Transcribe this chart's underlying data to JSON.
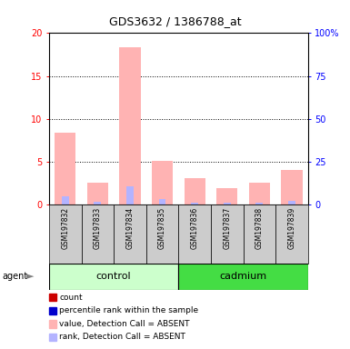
{
  "title": "GDS3632 / 1386788_at",
  "samples": [
    "GSM197832",
    "GSM197833",
    "GSM197834",
    "GSM197835",
    "GSM197836",
    "GSM197837",
    "GSM197838",
    "GSM197839"
  ],
  "groups": [
    "control",
    "control",
    "control",
    "control",
    "cadmium",
    "cadmium",
    "cadmium",
    "cadmium"
  ],
  "value_absent": [
    8.4,
    2.5,
    18.3,
    5.1,
    3.0,
    1.9,
    2.5,
    4.0
  ],
  "rank_absent": [
    0.9,
    0.3,
    2.1,
    0.6,
    0.2,
    0.2,
    0.2,
    0.4
  ],
  "ylim_left": [
    0,
    20
  ],
  "ylim_right": [
    0,
    100
  ],
  "yticks_left": [
    0,
    5,
    10,
    15,
    20
  ],
  "yticks_right": [
    0,
    25,
    50,
    75,
    100
  ],
  "yticklabels_right": [
    "0",
    "25",
    "50",
    "75",
    "100%"
  ],
  "color_value_absent": "#ffb3b3",
  "color_rank_absent": "#b3b3ff",
  "color_control_bg": "#ccffcc",
  "color_cadmium_bg": "#44dd44",
  "color_sample_bg": "#cccccc",
  "group_control_label": "control",
  "group_cadmium_label": "cadmium",
  "agent_label": "agent",
  "legend_items": [
    {
      "label": "count",
      "color": "#cc0000"
    },
    {
      "label": "percentile rank within the sample",
      "color": "#0000cc"
    },
    {
      "label": "value, Detection Call = ABSENT",
      "color": "#ffb3b3"
    },
    {
      "label": "rank, Detection Call = ABSENT",
      "color": "#b3b3ff"
    }
  ]
}
